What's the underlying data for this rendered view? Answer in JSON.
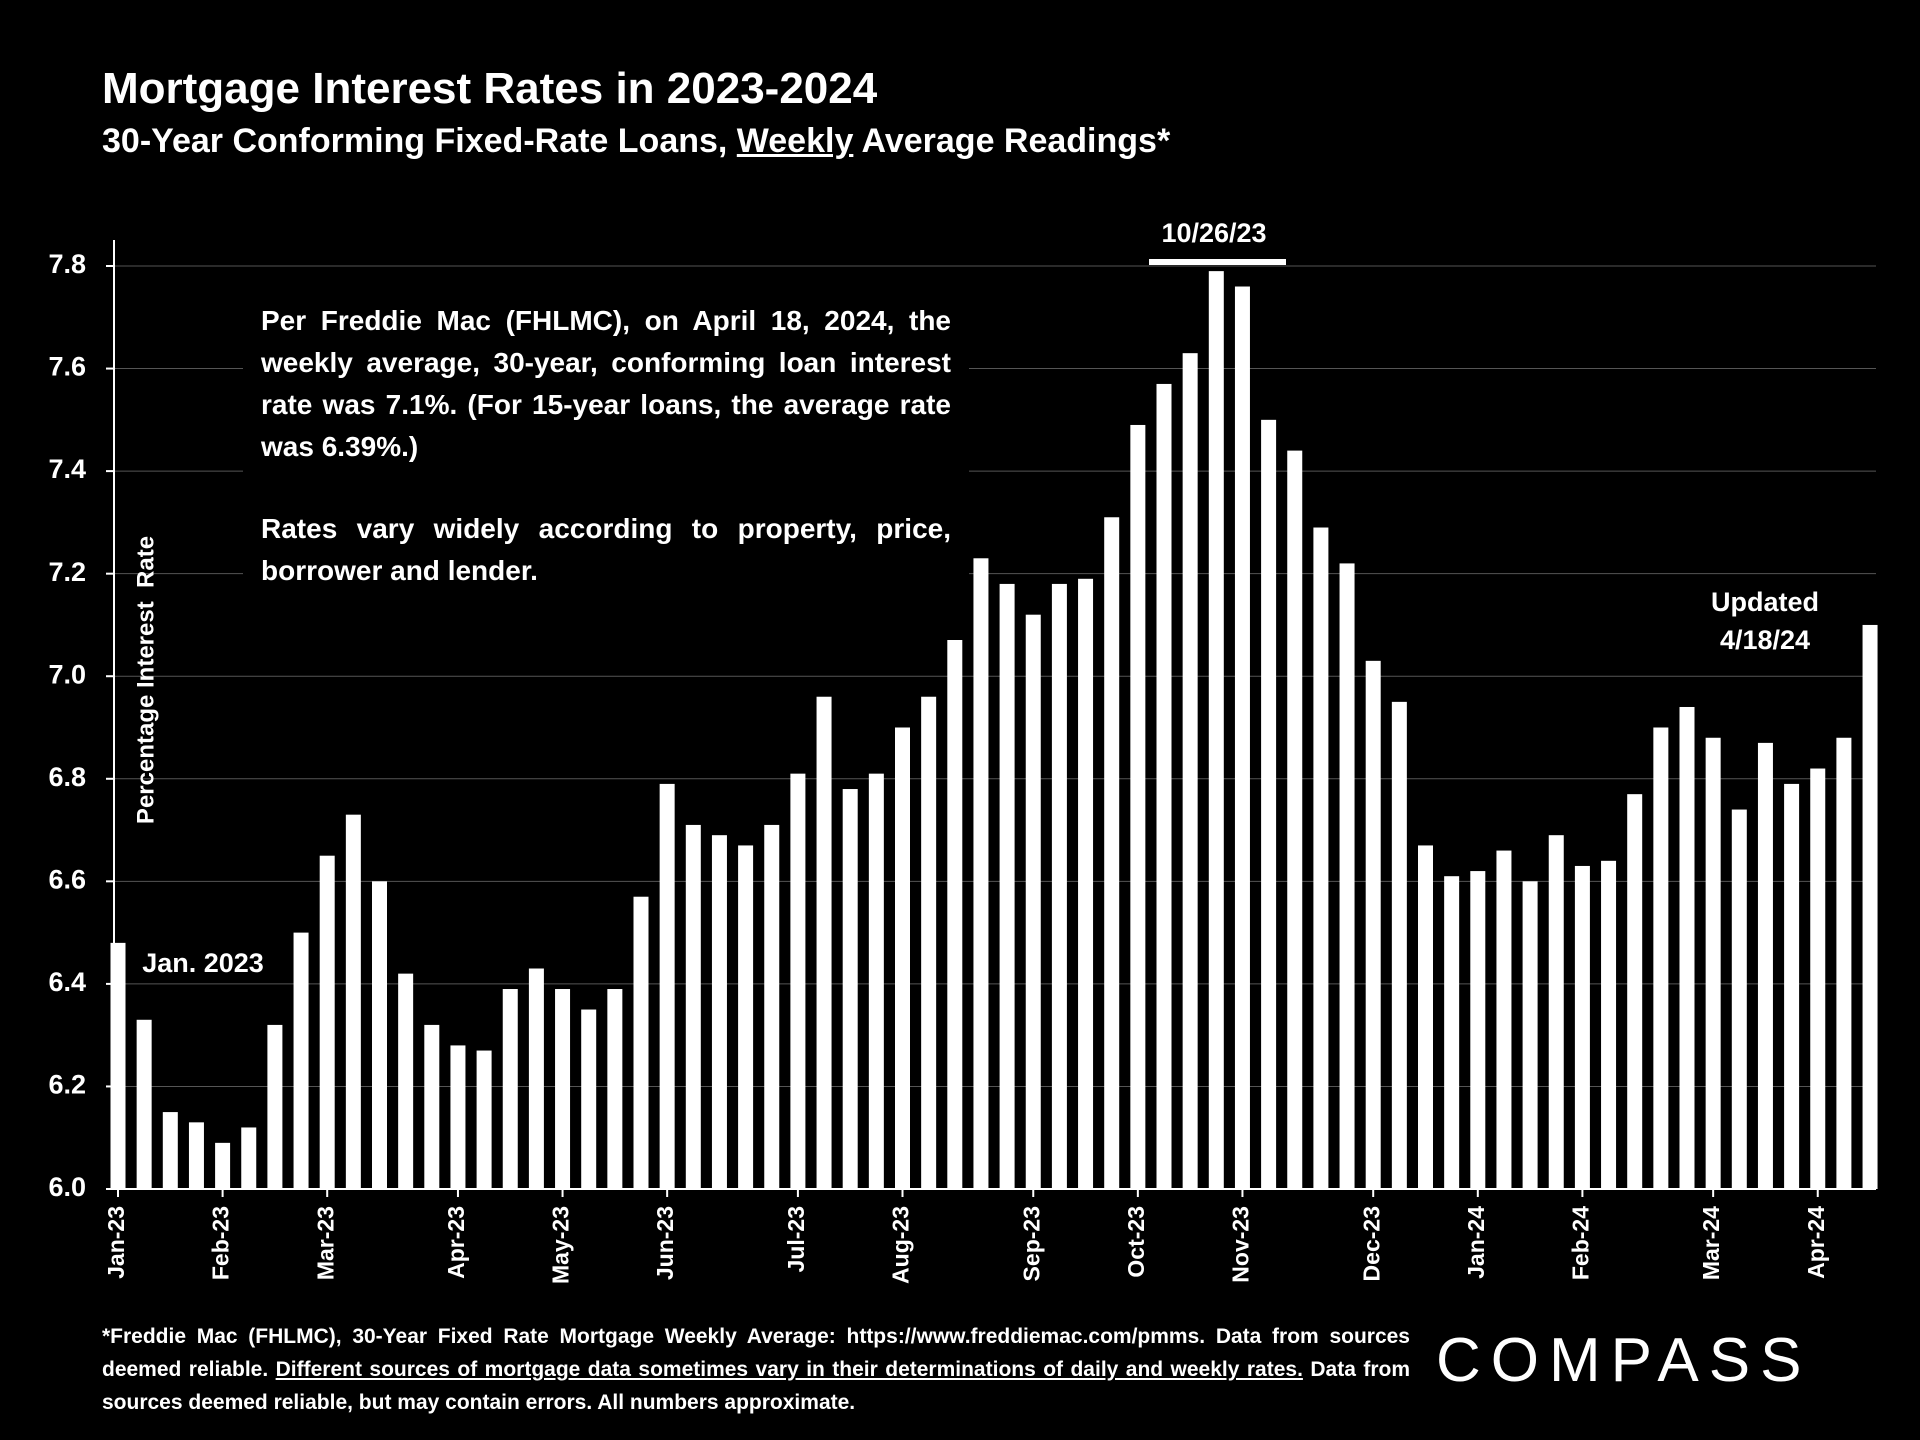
{
  "chart_data": {
    "type": "bar",
    "title": "Mortgage Interest Rates in 2023-2024",
    "subtitle": [
      "30-Year Conforming Fixed-Rate Loans, ",
      "Weekly",
      " Average Readings*"
    ],
    "y_label": "Percentage Interest  Rate",
    "categories": [
      "Jan-23",
      null,
      null,
      null,
      "Feb-23",
      null,
      null,
      null,
      "Mar-23",
      null,
      null,
      null,
      null,
      "Apr-23",
      null,
      null,
      null,
      "May-23",
      null,
      null,
      null,
      "Jun-23",
      null,
      null,
      null,
      null,
      "Jul-23",
      null,
      null,
      null,
      "Aug-23",
      null,
      null,
      null,
      null,
      "Sep-23",
      null,
      null,
      null,
      "Oct-23",
      null,
      null,
      null,
      "Nov-23",
      null,
      null,
      null,
      null,
      "Dec-23",
      null,
      null,
      null,
      "Jan-24",
      null,
      null,
      null,
      "Feb-24",
      null,
      null,
      null,
      null,
      "Mar-24",
      null,
      null,
      null,
      "Apr-24",
      null,
      null
    ],
    "values": [
      6.48,
      6.33,
      6.15,
      6.13,
      6.09,
      6.12,
      6.32,
      6.5,
      6.65,
      6.73,
      6.6,
      6.42,
      6.32,
      6.28,
      6.27,
      6.39,
      6.43,
      6.39,
      6.35,
      6.39,
      6.57,
      6.79,
      6.71,
      6.69,
      6.67,
      6.71,
      6.81,
      6.96,
      6.78,
      6.81,
      6.9,
      6.96,
      7.09,
      7.23,
      7.18,
      7.12,
      7.18,
      7.19,
      7.31,
      7.49,
      7.57,
      7.63,
      7.79,
      7.76,
      7.5,
      7.44,
      7.29,
      7.22,
      7.03,
      6.95,
      6.67,
      6.61,
      6.62,
      6.66,
      6.6,
      6.69,
      6.63,
      6.64,
      6.77,
      6.9,
      6.94,
      6.88,
      6.74,
      6.87,
      6.79,
      6.82,
      6.88,
      7.1
    ],
    "color": "#ffffff",
    "ylim": [
      6.0,
      7.8
    ],
    "yticks": [
      {
        "value": 6.0,
        "label": "6.0"
      },
      6.2,
      6.4,
      6.6,
      6.8,
      {
        "value": 7.0,
        "label": "7.0"
      },
      7.2,
      7.4,
      7.6,
      7.8
    ],
    "grid": true,
    "note": [
      "Per Freddie Mac (FHLMC), on April 18, 2024, the weekly average, 30-year, conforming loan interest rate was 7.1%. (For 15-year loans, the average rate was 6.39%.)",
      "Rates vary widely according to property, price, borrower and lender."
    ],
    "annotations": {
      "start": "Jan. 2023",
      "peak": "10/26/23",
      "updated": [
        "Updated",
        "4/18/24"
      ]
    }
  },
  "footer": [
    "*Freddie Mac (FHLMC), 30-Year Fixed Rate Mortgage Weekly Average:  https://www.freddiemac.com/pmms. Data from sources deemed reliable. ",
    "Different sources of mortgage data sometimes vary in their determinations of daily and weekly rates.",
    " Data from sources deemed reliable, but may contain errors. All numbers approximate."
  ],
  "logo": "COMPASS"
}
